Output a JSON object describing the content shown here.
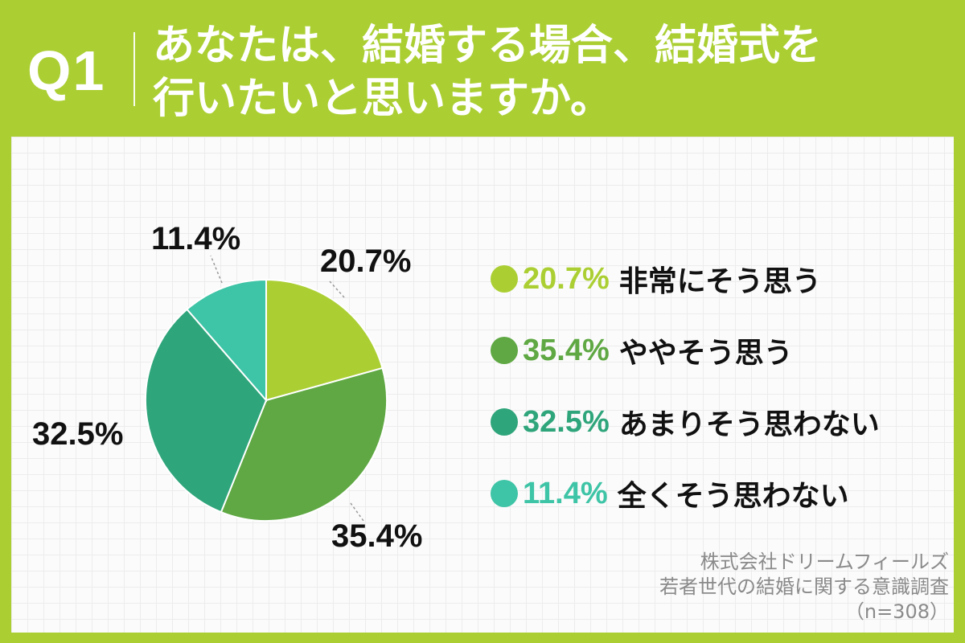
{
  "header": {
    "question_number": "Q1",
    "question_line1": "あなたは、結婚する場合、結婚式を",
    "question_line2": "行いたいと思いますか。"
  },
  "chart_data": {
    "type": "pie",
    "slices": [
      {
        "label": "非常にそう思う",
        "value": 20.7,
        "display": "20.7%",
        "color": "#abcf33"
      },
      {
        "label": "ややそう思う",
        "value": 35.4,
        "display": "35.4%",
        "color": "#5fa843"
      },
      {
        "label": "あまりそう思わない",
        "value": 32.5,
        "display": "32.5%",
        "color": "#2fa57b"
      },
      {
        "label": "全くそう思わない",
        "value": 11.4,
        "display": "11.4%",
        "color": "#3ec4a6"
      }
    ],
    "start": "12 o'clock",
    "direction": "clockwise"
  },
  "source": {
    "line1": "株式会社ドリームフィールズ",
    "line2": "若者世代の結婚に関する意識調査",
    "line3": "（n=308）"
  }
}
